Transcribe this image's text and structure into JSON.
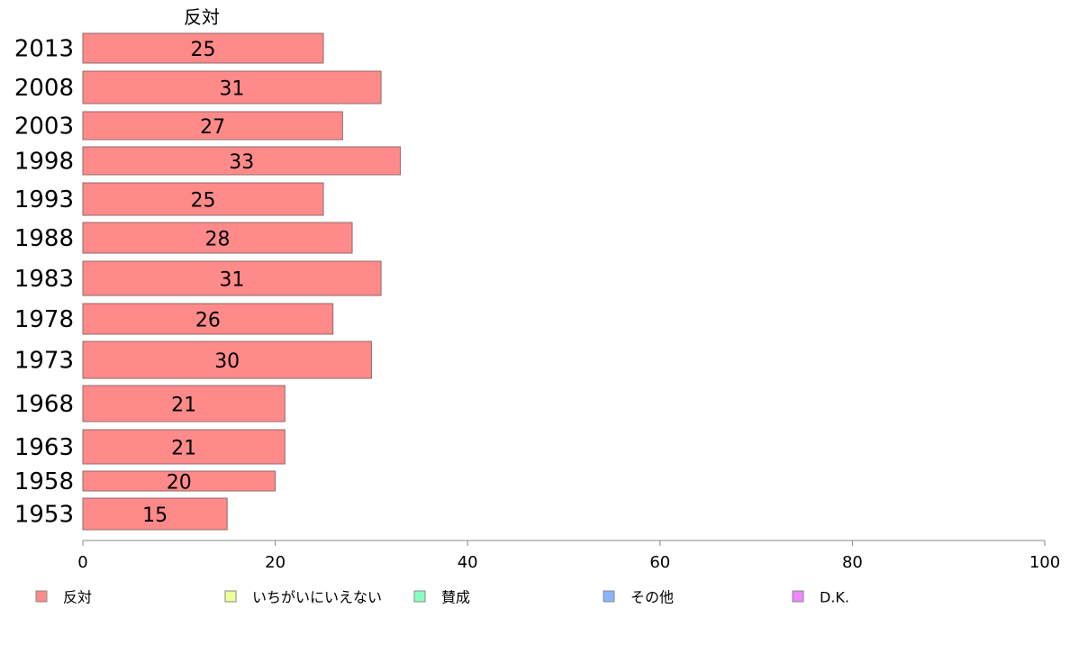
{
  "chart_data": {
    "type": "bar",
    "orientation": "horizontal",
    "column_header": "反対",
    "categories": [
      "2013",
      "2008",
      "2003",
      "1998",
      "1993",
      "1988",
      "1983",
      "1978",
      "1973",
      "1968",
      "1963",
      "1958",
      "1953"
    ],
    "series": [
      {
        "name": "反対",
        "color": "#ff8a8a",
        "values": [
          25,
          31,
          27,
          33,
          25,
          28,
          31,
          26,
          30,
          21,
          21,
          20,
          15
        ]
      }
    ],
    "xlim": [
      0,
      100
    ],
    "xticks": [
      0,
      20,
      40,
      60,
      80,
      100
    ],
    "legend": {
      "placement": "bottom",
      "items": [
        {
          "label": "反対",
          "color": "#ff8a8a"
        },
        {
          "label": "いちがいにいえない",
          "color": "#eeff99"
        },
        {
          "label": "賛成",
          "color": "#8affc0"
        },
        {
          "label": "その他",
          "color": "#8ab4ff"
        },
        {
          "label": "D.K.",
          "color": "#ee88ff"
        }
      ]
    },
    "grid": false
  }
}
